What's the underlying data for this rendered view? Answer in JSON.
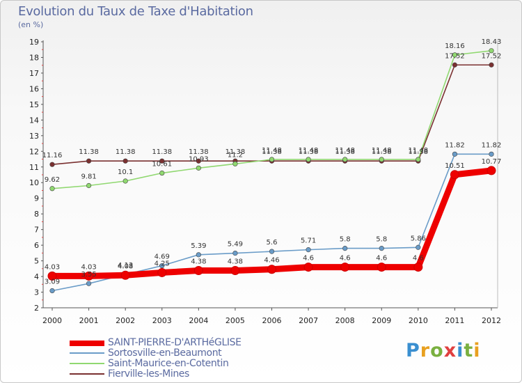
{
  "header": {
    "title": "Evolution du Taux de Taxe d'Habitation",
    "unit": "(en %)"
  },
  "logo": {
    "text": "Proxiti",
    "letters": [
      "P",
      "r",
      "o",
      "x",
      "i",
      "t",
      "i"
    ],
    "colors": [
      "#3a8fd0",
      "#e8a020",
      "#7ab040",
      "#e04040",
      "#3a8fd0",
      "#7ab040",
      "#e8a020"
    ]
  },
  "chart_data": {
    "type": "line",
    "title": "Evolution du Taux de Taxe d'Habitation",
    "ylabel": "(en %)",
    "xlabel": "",
    "x": [
      "2000",
      "2001",
      "2002",
      "2003",
      "2004",
      "2005",
      "2006",
      "2007",
      "2008",
      "2009",
      "2010",
      "2011",
      "2012"
    ],
    "ylim": [
      2,
      19
    ],
    "yticks": [
      2,
      3,
      4,
      5,
      6,
      7,
      8,
      9,
      10,
      11,
      12,
      13,
      14,
      15,
      16,
      17,
      18,
      19
    ],
    "grid": false,
    "legend_position": "bottom-left",
    "series": [
      {
        "name": "SAINT-PIERRE-D'ARTHéGLISE",
        "color": "#ee0000",
        "values": [
          4.03,
          4.03,
          4.08,
          4.25,
          4.38,
          4.38,
          4.46,
          4.6,
          4.6,
          4.6,
          4.6,
          10.51,
          10.77
        ],
        "labels": [
          "4.03",
          "4.03",
          "4.08",
          "4.25",
          "4.38",
          "4.38",
          "4.46",
          "4.6",
          "4.6",
          "4.6",
          "4.6",
          "10.51",
          "10.77"
        ]
      },
      {
        "name": "Sortosville-en-Beaumont",
        "color": "#6a9cc8",
        "values": [
          3.09,
          3.55,
          4.13,
          4.69,
          5.39,
          5.49,
          5.6,
          5.71,
          5.8,
          5.8,
          5.86,
          11.82,
          11.82
        ],
        "labels": [
          "3.09",
          "3.55",
          "4.13",
          "4.69",
          "5.39",
          "5.49",
          "5.6",
          "5.71",
          "5.8",
          "5.8",
          "5.86",
          "11.82",
          "11.82"
        ]
      },
      {
        "name": "Saint-Maurice-en-Cotentin",
        "color": "#90d870",
        "values": [
          9.62,
          9.81,
          10.1,
          10.61,
          10.93,
          11.2,
          11.48,
          11.48,
          11.48,
          11.48,
          11.48,
          18.16,
          18.43
        ],
        "labels": [
          "9.62",
          "9.81",
          "10.1",
          "10.61",
          "10.93",
          "11.2",
          "11.48",
          "11.48",
          "11.48",
          "11.48",
          "11.48",
          "18.16",
          "18.43"
        ]
      },
      {
        "name": "Fierville-les-Mines",
        "color": "#7a3030",
        "values": [
          11.16,
          11.38,
          11.38,
          11.38,
          11.38,
          11.38,
          11.38,
          11.38,
          11.38,
          11.38,
          11.38,
          17.52,
          17.52
        ],
        "labels": [
          "11.16",
          "11.38",
          "11.38",
          "11.38",
          "11.38",
          "11.38",
          "11.38",
          "11.38",
          "11.38",
          "11.38",
          "11.38",
          "17.52",
          "17.52"
        ]
      }
    ]
  }
}
